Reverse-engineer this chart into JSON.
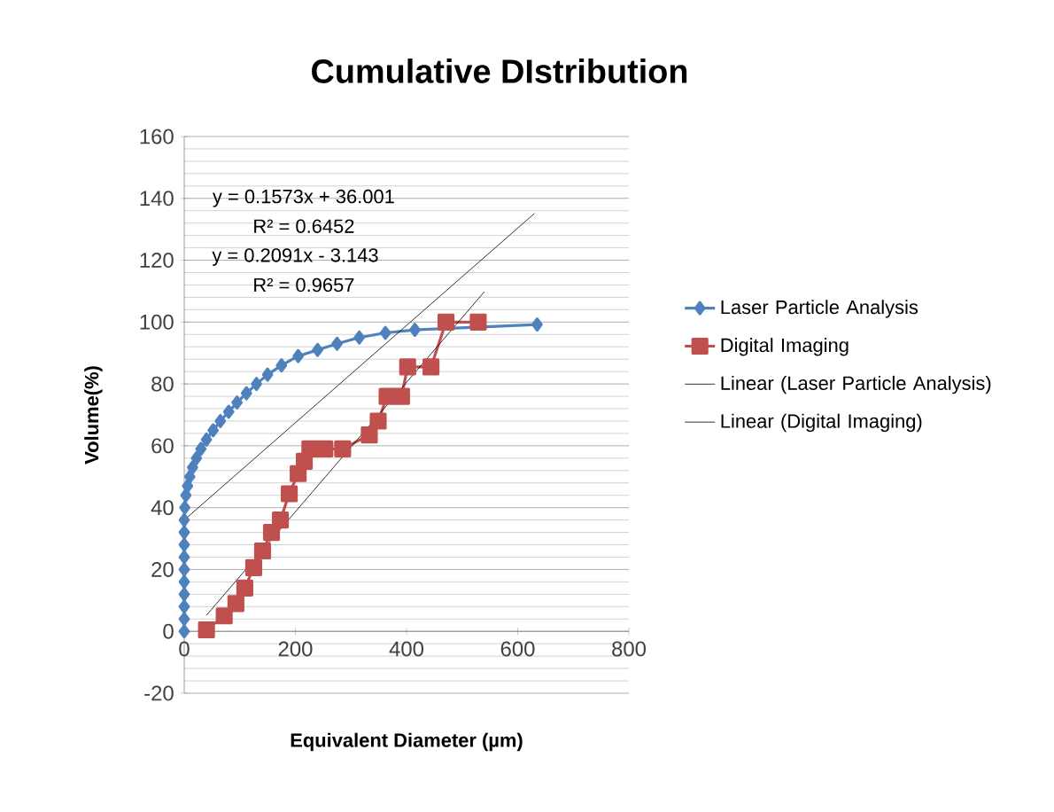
{
  "chart_data": {
    "type": "line",
    "title": "Cumulative DIstribution",
    "xlabel": "Equivalent Diameter (µm)",
    "ylabel": "Volume(%)",
    "xlim": [
      0,
      800
    ],
    "xticks": [
      0,
      200,
      400,
      600,
      800
    ],
    "ylim": [
      -20,
      160
    ],
    "yticks": [
      -20,
      0,
      20,
      40,
      60,
      80,
      100,
      120,
      140,
      160
    ],
    "grid": "y",
    "legend": "right",
    "series": [
      {
        "name": "Laser Particle Analysis",
        "color": "#4f81bd",
        "marker": "diamond",
        "x": [
          0,
          0,
          0,
          0,
          0,
          0,
          0,
          0,
          0,
          0,
          1,
          3,
          6,
          10,
          15,
          22,
          30,
          40,
          52,
          65,
          80,
          95,
          112,
          130,
          150,
          175,
          205,
          240,
          275,
          315,
          362,
          415,
          465,
          635
        ],
        "values": [
          0,
          4,
          8,
          12,
          16,
          20,
          24,
          28,
          32,
          36,
          40,
          44,
          47,
          50,
          53,
          56,
          59,
          62,
          65,
          68,
          71,
          74,
          77,
          80,
          83,
          86,
          89,
          91,
          93,
          95,
          96.5,
          97.5,
          null,
          99.2
        ]
      },
      {
        "name": "Digital Imaging",
        "color": "#c0504d",
        "marker": "square",
        "x": [
          40,
          72,
          93,
          109,
          125,
          141,
          157,
          173,
          189,
          205,
          216,
          226,
          253,
          285,
          333,
          349,
          365,
          391,
          402,
          444,
          471,
          529
        ],
        "values": [
          0.5,
          5,
          9,
          14,
          20.6,
          26,
          32,
          36,
          44.5,
          51,
          55,
          59,
          59,
          59,
          63.5,
          68,
          76,
          76,
          85.5,
          85.5,
          100,
          100
        ]
      },
      {
        "name": "Linear (Laser Particle Analysis)",
        "color": "#000000",
        "marker": "none",
        "x": [
          0,
          630
        ],
        "values": [
          36.0,
          135.1
        ]
      },
      {
        "name": "Linear (Digital Imaging)",
        "color": "#000000",
        "marker": "none",
        "x": [
          40,
          540
        ],
        "values": [
          5.2,
          109.8
        ]
      }
    ],
    "annotations": [
      "y = 0.1573x + 36.001",
      "R² = 0.6452",
      "y = 0.2091x - 3.143",
      "R² = 0.9657"
    ]
  }
}
